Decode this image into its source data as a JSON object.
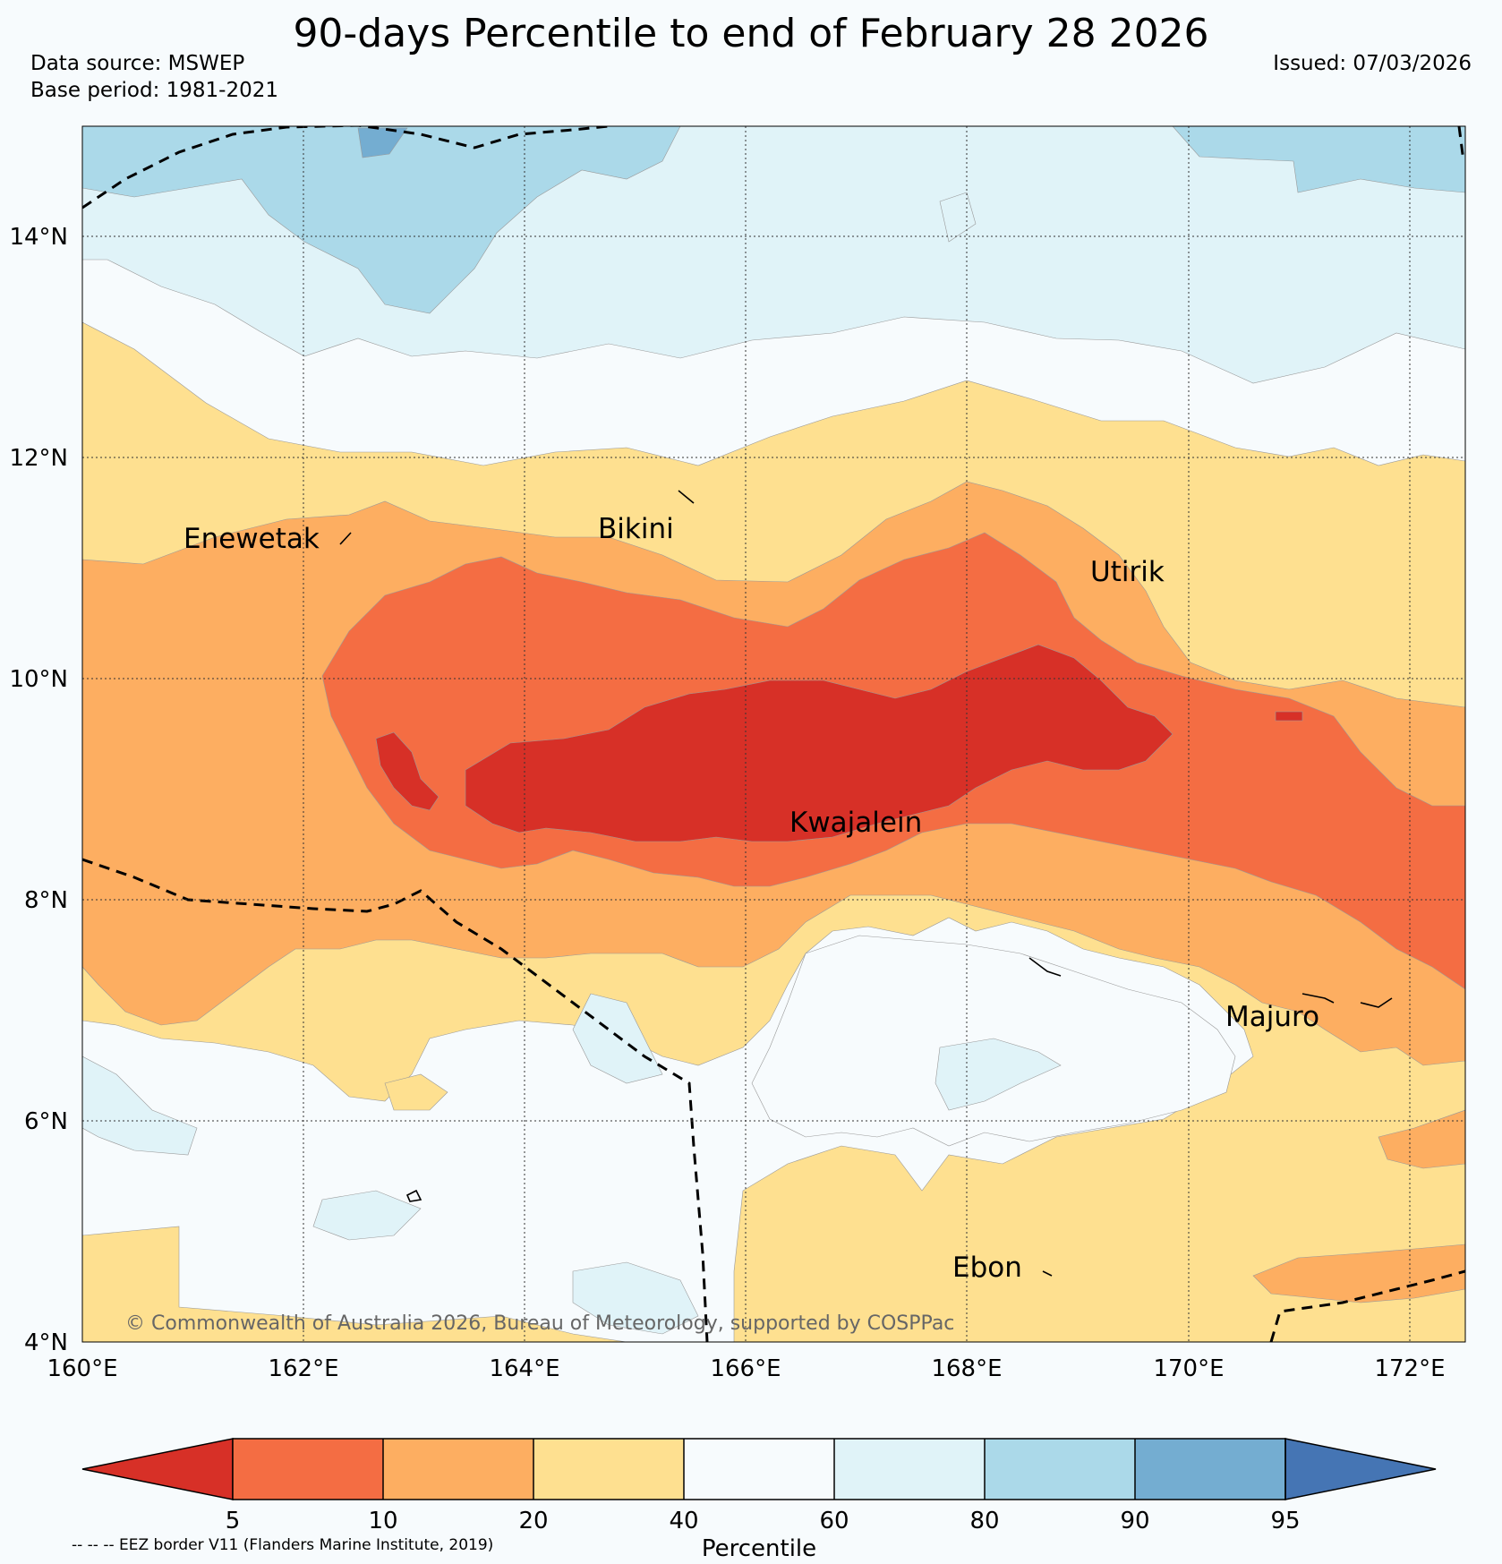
{
  "title": "90-days Percentile to end of February 28 2026",
  "data_source": "Data source: MSWEP",
  "base_period": "Base period: 1981-2021",
  "issued": "Issued: 07/03/2026",
  "copyright": "© Commonwealth of Australia 2026, Bureau of Meteorology, supported by COSPPac",
  "eez_note": "-- -- -- EEZ border V11 (Flanders Marine Institute, 2019)",
  "map": {
    "lon_labels": [
      "160°E",
      "162°E",
      "164°E",
      "166°E",
      "168°E",
      "170°E",
      "172°E"
    ],
    "lat_labels": [
      "4°N",
      "6°N",
      "8°N",
      "10°N",
      "12°N",
      "14°N"
    ],
    "places": [
      {
        "name": "Enewetak",
        "lon": 162.5,
        "lat": 11.2
      },
      {
        "name": "Bikini",
        "lon": 165.6,
        "lat": 11.3
      },
      {
        "name": "Utirik",
        "lon": 169.6,
        "lat": 10.9
      },
      {
        "name": "Kwajalein",
        "lon": 167.4,
        "lat": 8.7
      },
      {
        "name": "Majuro",
        "lon": 171.3,
        "lat": 7.0
      },
      {
        "name": "Ebon",
        "lon": 168.2,
        "lat": 4.7
      }
    ]
  },
  "colorbar": {
    "label": "Percentile",
    "ticks": [
      "5",
      "10",
      "20",
      "40",
      "60",
      "80",
      "90",
      "95"
    ],
    "colors": {
      "below_5": "#d73027",
      "p5_10": "#f46d43",
      "p10_20": "#fdae61",
      "p20_40": "#fee090",
      "p40_60": "#f7fbfd",
      "p60_80": "#e0f3f8",
      "p80_90": "#abd9e9",
      "p90_95": "#74add1",
      "above_95": "#4575b4"
    }
  }
}
